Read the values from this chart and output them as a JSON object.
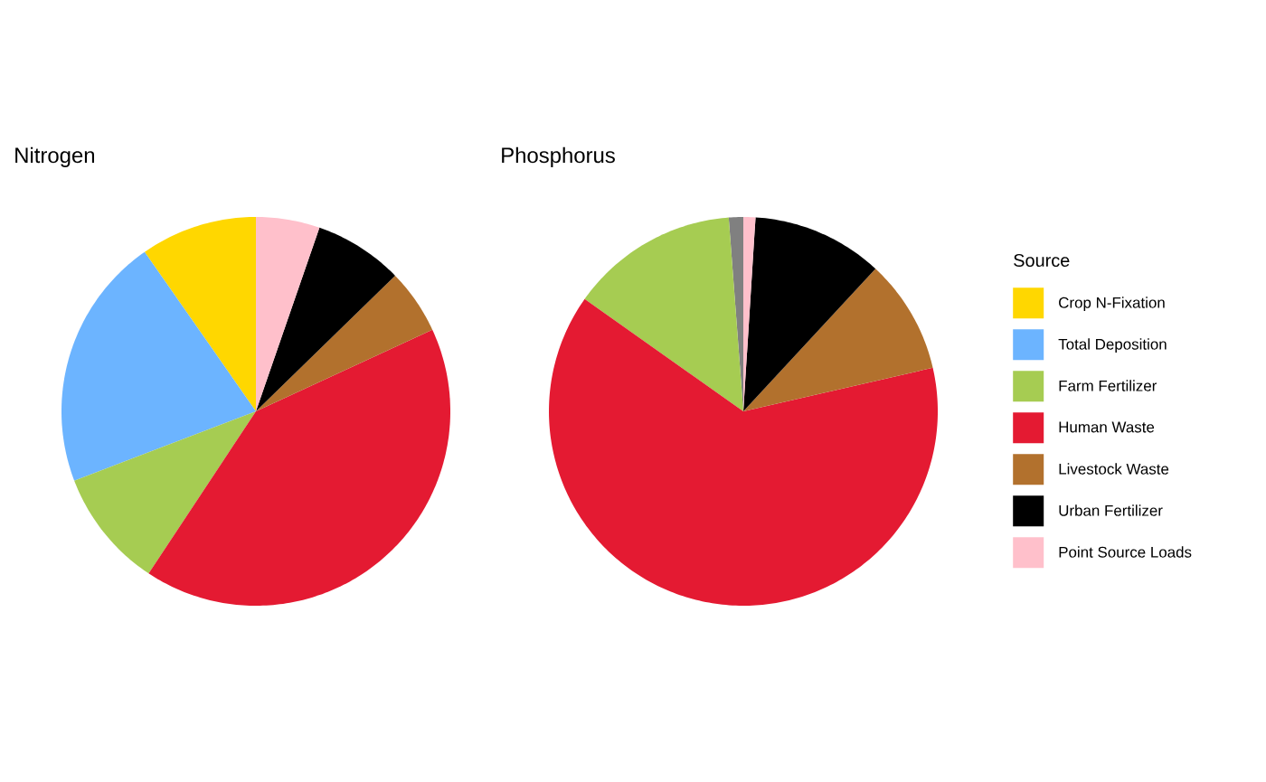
{
  "chart_data": {
    "type": "pie",
    "legend": "right",
    "legend_title": "Source",
    "categories": [
      null,
      "Crop N-Fixation",
      "Total Deposition",
      "Farm Fertilizer",
      "Human Waste",
      "Livestock Waste",
      "Urban Fertilizer",
      "Point Source Loads"
    ],
    "colors": [
      "#808080",
      "#ffd700",
      "#6cb4ff",
      "#a6cc52",
      "#e41a32",
      "#b2712d",
      "#000000",
      "#ffc0cb"
    ],
    "series": [
      {
        "name": "Nitrogen",
        "values": [
          null,
          9.7,
          21.1,
          9.9,
          41.2,
          5.4,
          7.4,
          5.3
        ]
      },
      {
        "name": "Phosphorus",
        "values": [
          1.2,
          null,
          null,
          14.0,
          63.4,
          9.5,
          10.9,
          1.0
        ]
      }
    ]
  }
}
